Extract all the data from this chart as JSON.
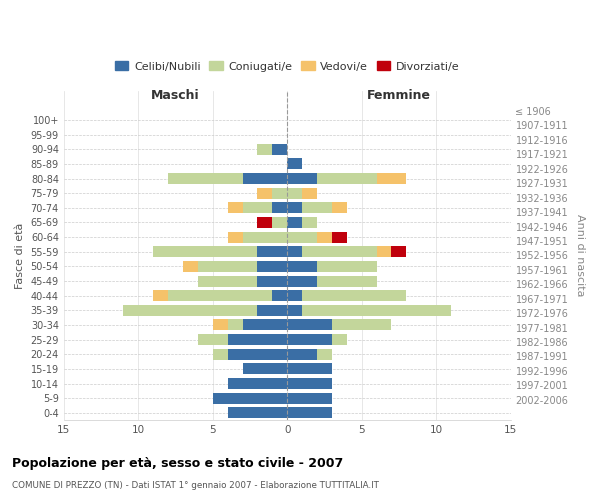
{
  "age_groups": [
    "0-4",
    "5-9",
    "10-14",
    "15-19",
    "20-24",
    "25-29",
    "30-34",
    "35-39",
    "40-44",
    "45-49",
    "50-54",
    "55-59",
    "60-64",
    "65-69",
    "70-74",
    "75-79",
    "80-84",
    "85-89",
    "90-94",
    "95-99",
    "100+"
  ],
  "birth_years": [
    "2002-2006",
    "1997-2001",
    "1992-1996",
    "1987-1991",
    "1982-1986",
    "1977-1981",
    "1972-1976",
    "1967-1971",
    "1962-1966",
    "1957-1961",
    "1952-1956",
    "1947-1951",
    "1942-1946",
    "1937-1941",
    "1932-1936",
    "1927-1931",
    "1922-1926",
    "1917-1921",
    "1912-1916",
    "1907-1911",
    "≤ 1906"
  ],
  "male": {
    "celibi": [
      4,
      5,
      4,
      3,
      4,
      4,
      3,
      2,
      1,
      2,
      2,
      2,
      0,
      0,
      1,
      0,
      3,
      0,
      1,
      0,
      0
    ],
    "coniugati": [
      0,
      0,
      0,
      0,
      1,
      2,
      1,
      9,
      7,
      4,
      4,
      7,
      3,
      1,
      2,
      1,
      5,
      0,
      1,
      0,
      0
    ],
    "vedovi": [
      0,
      0,
      0,
      0,
      0,
      0,
      1,
      0,
      1,
      0,
      1,
      0,
      1,
      0,
      1,
      1,
      0,
      0,
      0,
      0,
      0
    ],
    "divorziati": [
      0,
      0,
      0,
      0,
      0,
      0,
      0,
      0,
      0,
      0,
      0,
      0,
      0,
      1,
      0,
      0,
      0,
      0,
      0,
      0,
      0
    ]
  },
  "female": {
    "nubili": [
      3,
      3,
      3,
      3,
      2,
      3,
      3,
      1,
      1,
      2,
      2,
      1,
      0,
      1,
      1,
      0,
      2,
      1,
      0,
      0,
      0
    ],
    "coniugate": [
      0,
      0,
      0,
      0,
      1,
      1,
      4,
      10,
      7,
      4,
      4,
      5,
      2,
      1,
      2,
      1,
      4,
      0,
      0,
      0,
      0
    ],
    "vedove": [
      0,
      0,
      0,
      0,
      0,
      0,
      0,
      0,
      0,
      0,
      0,
      1,
      1,
      0,
      1,
      1,
      2,
      0,
      0,
      0,
      0
    ],
    "divorziate": [
      0,
      0,
      0,
      0,
      0,
      0,
      0,
      0,
      0,
      0,
      0,
      1,
      1,
      0,
      0,
      0,
      0,
      0,
      0,
      0,
      0
    ]
  },
  "colors": {
    "celibi": "#3A6EA5",
    "coniugati": "#C3D69B",
    "vedovi": "#F5C26A",
    "divorziati": "#C0000C"
  },
  "xlim": 15,
  "title": "Popolazione per età, sesso e stato civile - 2007",
  "subtitle": "COMUNE DI PREZZO (TN) - Dati ISTAT 1° gennaio 2007 - Elaborazione TUTTITALIA.IT",
  "ylabel_left": "Fasce di età",
  "ylabel_right": "Anni di nascita",
  "xlabel_left": "Maschi",
  "xlabel_right": "Femmine",
  "legend_labels": [
    "Celibi/Nubili",
    "Coniugati/e",
    "Vedovi/e",
    "Divorziati/e"
  ],
  "background_color": "#ffffff",
  "grid_color": "#cccccc"
}
